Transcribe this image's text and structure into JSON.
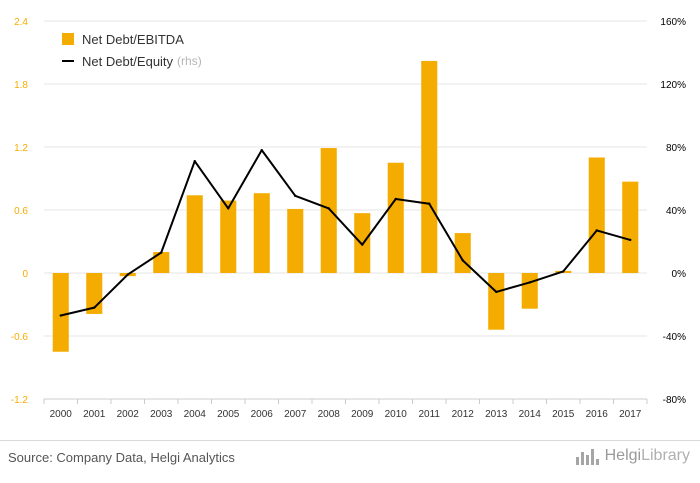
{
  "chart_data": {
    "type": "bar",
    "categories": [
      "2000",
      "2001",
      "2002",
      "2003",
      "2004",
      "2005",
      "2006",
      "2007",
      "2008",
      "2009",
      "2010",
      "2011",
      "2012",
      "2013",
      "2014",
      "2015",
      "2016",
      "2017"
    ],
    "series": [
      {
        "name": "Net Debt/EBITDA",
        "type": "bar",
        "axis": "left",
        "color": "#f5ac00",
        "values": [
          -0.75,
          -0.39,
          -0.03,
          0.2,
          0.74,
          0.69,
          0.76,
          0.61,
          1.19,
          0.57,
          1.05,
          2.02,
          0.38,
          -0.54,
          -0.34,
          0.02,
          1.1,
          0.87
        ]
      },
      {
        "name": "Net Debt/Equity",
        "note": "(rhs)",
        "type": "line",
        "axis": "right",
        "color": "#000000",
        "values": [
          -27,
          -22,
          -1,
          13,
          71,
          41,
          78,
          49,
          41,
          18,
          47,
          44,
          8,
          -12,
          -6,
          1,
          27,
          21
        ]
      }
    ],
    "yleft": {
      "ylim": [
        -1.2,
        2.4
      ],
      "ticks": [
        "-1.2",
        "-0.6",
        "0",
        "0.6",
        "1.2",
        "1.8",
        "2.4"
      ],
      "tick_color": "#f5ac00"
    },
    "yright": {
      "ylim": [
        -80,
        160
      ],
      "ticks": [
        "-80%",
        "-40%",
        "0%",
        "40%",
        "80%",
        "120%",
        "160%"
      ],
      "tick_color": "#000000"
    },
    "grid": true,
    "legend": "top-left"
  },
  "footer": {
    "source": "Source: Company Data, Helgi Analytics",
    "brand_main": "Helgi",
    "brand_sub": "Library"
  }
}
